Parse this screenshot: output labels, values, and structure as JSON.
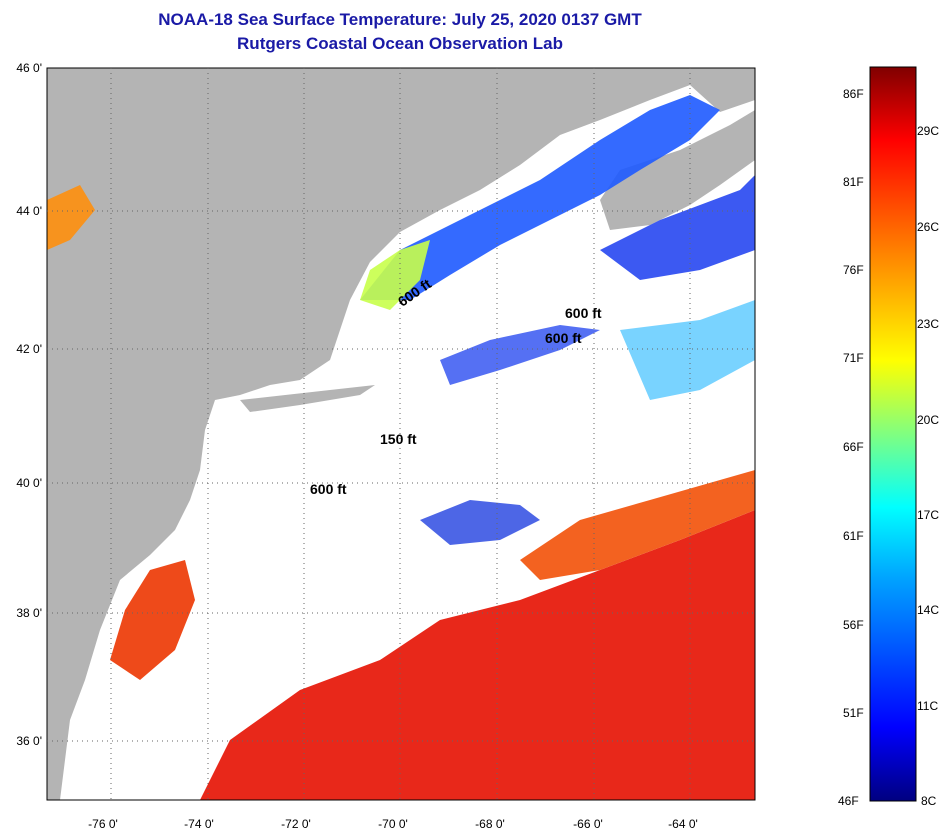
{
  "title": {
    "line1": "NOAA-18 Sea Surface Temperature:  July 25, 2020 0137 GMT",
    "line2": "Rutgers Coastal Ocean Observation Lab"
  },
  "axes": {
    "lat_labels": [
      "46 0'",
      "44 0'",
      "42 0'",
      "40 0'",
      "38 0'",
      "36 0'"
    ],
    "lon_labels": [
      "-76 0'",
      "-74 0'",
      "-72 0'",
      "-70 0'",
      "-68 0'",
      "-66 0'",
      "-64 0'"
    ]
  },
  "contours": [
    "600 ft",
    "600 ft",
    "600 ft",
    "150 ft",
    "600 ft"
  ],
  "colorbar": {
    "fahrenheit": [
      "86F",
      "81F",
      "76F",
      "71F",
      "66F",
      "61F",
      "56F",
      "51F",
      "46F"
    ],
    "celsius": [
      "29C",
      "26C",
      "23C",
      "20C",
      "17C",
      "14C",
      "11C",
      "8C"
    ]
  },
  "colors": {
    "land": "#b4b4b4",
    "cloud": "#ffffff",
    "title": "#1a1aa6",
    "warm": "#e8281a",
    "cold": "#0a28d2"
  }
}
